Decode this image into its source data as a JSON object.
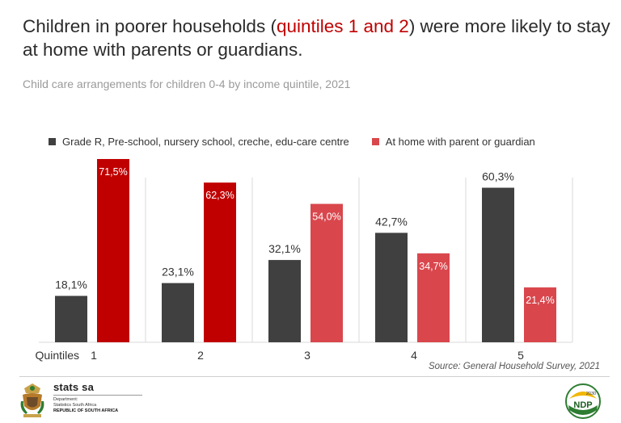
{
  "headline": {
    "before": "Children in poorer households (",
    "highlight": "quintiles 1 and 2",
    "after": ") were more likely to stay at home with parents or guardians."
  },
  "subtitle": "Child care arrangements for children 0-4 by income quintile, 2021",
  "source": "Source: General Household Survey, 2021",
  "colors": {
    "grade_r": "#404040",
    "home_dark": "#c00000",
    "home_light": "#d9474d",
    "grid": "#d9d9d9"
  },
  "chart_data": {
    "type": "bar",
    "title": "Child care arrangements for children 0-4 by income quintile, 2021",
    "xlabel": "Quintiles",
    "ylabel": "",
    "ylim": [
      0,
      80
    ],
    "grid": false,
    "legend_position": "top-left",
    "categories": [
      "1",
      "2",
      "3",
      "4",
      "5"
    ],
    "series": [
      {
        "name": "Grade R, Pre-school, nursery school, creche, edu-care centre",
        "values": [
          18.1,
          23.1,
          32.1,
          42.7,
          60.3
        ],
        "labels": [
          "18,1%",
          "23,1%",
          "32,1%",
          "42,7%",
          "60,3%"
        ]
      },
      {
        "name": "At home with parent or guardian",
        "values": [
          71.5,
          62.3,
          54.0,
          34.7,
          21.4
        ],
        "labels": [
          "71,5%",
          "62,3%",
          "54,0%",
          "34,7%",
          "21,4%"
        ]
      }
    ]
  },
  "footer": {
    "brand": "stats sa",
    "dept_line1": "Department:",
    "dept_line2": "Statistics South Africa",
    "dept_line3": "REPUBLIC OF SOUTH AFRICA",
    "ndp_label": "NDP",
    "ndp_year": "2030"
  }
}
